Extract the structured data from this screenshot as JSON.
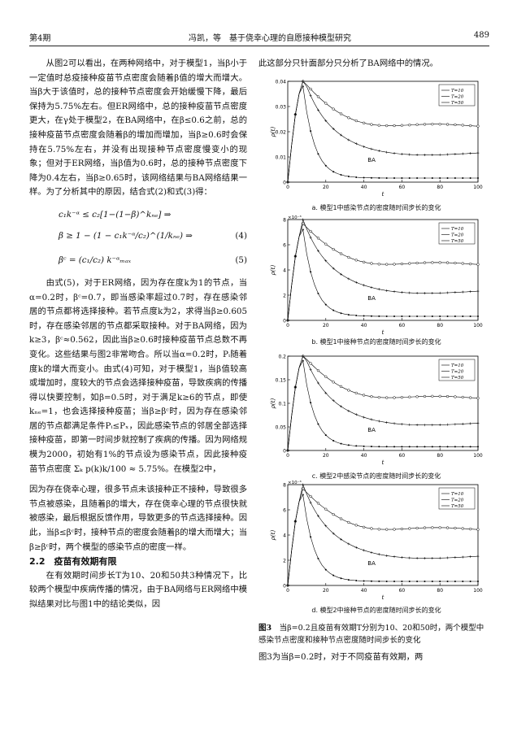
{
  "header": {
    "issue": "第4期",
    "authors_title": "冯凯，等　基于侥幸心理的自愿接种模型研究",
    "page": "489"
  },
  "left": {
    "p1": "从图2可以看出，在两种网络中，对于模型1，当β小于一定值时总疫接种疫苗节点密度会随着β值的增大而增大。当β大于该值时，总的接种节点密度会开始缓慢下降，最后保持为5.75%左右。但ER网络中，总的接种疫苗节点密度更大，在γ处于模型2，在BA网络中，在β≤0.6之前，总的接种疫苗节点密度会随着β的增加而增加，当β≥0.6时会保持在5.75%左右，并没有出现接种节点密度慢变小的现象；但对于ER网络，当β值为0.6时，总的接种节点密度下降为0.4左右，当β≥0.65时，该网络结果与BA网络结果一样。为了分析其中的原因，结合式(2)和式(3)得：",
    "eq4_a": "c₁k⁻ᵅ ≤ c₂[1−(1−β)^kₙₑ] ⇒",
    "eq4_b": "β ≥ 1 − (1 − c₁k⁻ᵅ/c₂)^(1/kₙₑ) ⇒",
    "eq4_num": "(4)",
    "eq5": "βᶜ = (c₁/c₂) k⁻ᵅₘₐₓ",
    "eq5_num": "(5)",
    "p2": "由式(5)，对于ER网络，因为存在度k为1的节点，当α=0.2时，βᶜ=0.7，即当感染率超过0.7时，存在感染邻居的节点都将选择接种。若节点度k为2，求得当β≥0.605时，存在感染邻居的节点都采取接种。对于BA网络，因为k≥3，βᶜ≈0.562，因此当β≥0.6时接种疫苗节点总数不再变化。这些结果与图2非常吻合。所以当α=0.2时，Pᵢ随着度k的增大而变小。由式(4)可知，对于模型1，当β值较高或增加时，度较大的节点会选择接种疫苗，导致疾病的传播得以快要控制，如β=0.5时，对于满足k≥6的节点，即使kₙₑ=1，也会选择接种疫苗；当β≥βᶜ时，因为存在感染邻居的节点都满足条件Pᵢ≤Pₓ，因此感染节点的邻居全部选择接种疫苗，即第一时间步就控制了疾病的传播。因为网络规模为2000，初始有1%的节点设为感染节点，因此接种疫苗节点密度 Σₖ p(k)k/100 ≈ 5.75%。在模型2中，",
    "p3": "因为存在侥幸心理，很多节点未该接种正不接种，导致很多节点被感染，且随着β的增大，存在侥幸心理的节点很快就被感染，最后根据反馈作用，导致更多的节点选择接种。因此，当β≤βᶜ时，接种节点的密度会随着β的增大而增大；当β≥βᶜ时，两个模型的感染节点的密度一样。",
    "section": "2.2　疫苗有效期有限",
    "p4": "在有效期时间步长T为10、20和50共3种情况下，比较两个模型中疾病传播的情况，由于BA网络与ER网络中模拟结果对比与图1中的结论类似，因"
  },
  "right_intro": "此这部分只针面部分只分析了BA网络中的情况。",
  "figures": [
    {
      "caption": "a. 模型1中感染节点的密度随时间步长的变化",
      "ylabel": "ρ(t)",
      "exp": "",
      "ytick_top": "0.04",
      "ticks_y": [
        "0.04",
        "0.03",
        "0.02",
        "0.01",
        "0"
      ],
      "ticks_x": [
        "0",
        "20",
        "40",
        "60",
        "80",
        "100"
      ],
      "xlabel": "t",
      "legend": [
        "T=10",
        "T=20",
        "T=50"
      ],
      "label": "BA"
    },
    {
      "caption": "b. 模型1中接种节点的密度随时间步长的变化",
      "ylabel": "ρ(t)",
      "exp": "×10⁻³",
      "ticks_y": [
        "8",
        "6",
        "4",
        "2",
        "0"
      ],
      "ticks_x": [
        "0",
        "20",
        "40",
        "60",
        "80",
        "100"
      ],
      "xlabel": "t",
      "legend": [
        "T=10",
        "T=20",
        "T=50"
      ],
      "label": "BA"
    },
    {
      "caption": "c. 模型2中感染节点的密度随时间步长的变化",
      "ylabel": "ρ(t)",
      "exp": "",
      "ticks_y": [
        "0.2",
        "0.15",
        "0.1",
        "0.05",
        "0"
      ],
      "ticks_x": [
        "0",
        "20",
        "40",
        "60",
        "80",
        "100"
      ],
      "xlabel": "t",
      "legend": [
        "T=10",
        "T=20",
        "T=50"
      ],
      "label": "BA"
    },
    {
      "caption": "d. 模型2中接种节点的密度随时间步长的变化",
      "ylabel": "ρ(t)",
      "exp": "×10⁻³",
      "ticks_y": [
        "8",
        "6",
        "4",
        "2",
        "0"
      ],
      "ticks_x": [
        "0",
        "20",
        "40",
        "60",
        "80",
        "100"
      ],
      "xlabel": "t",
      "legend": [
        "T=10",
        "T=20",
        "T=50"
      ],
      "label": "BA"
    }
  ],
  "figcap": {
    "label": "图3",
    "text": "当β=0.2且疫苗有效期T分别为10、20和50时，两个模型中感染节点密度和接种节点密度随时间步长的变化"
  },
  "right_end": "图3为当β=0.2时，对于不同疫苗有效期，两"
}
